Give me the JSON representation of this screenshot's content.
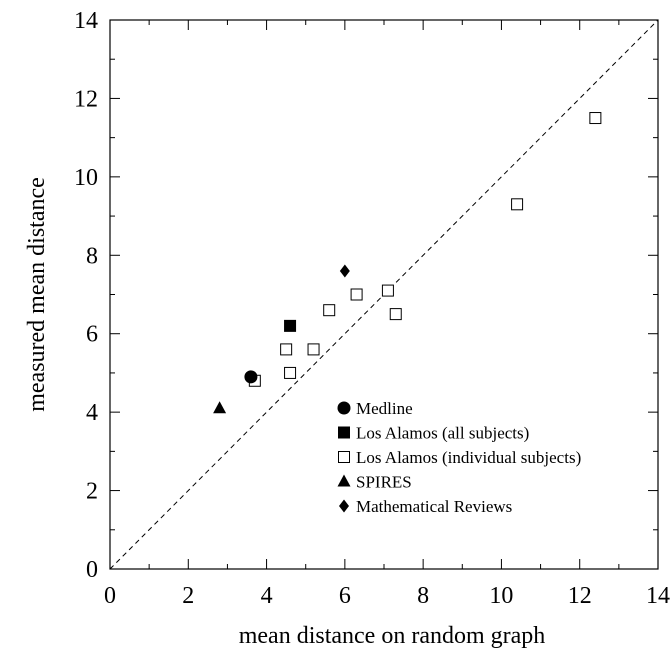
{
  "chart_data": {
    "type": "scatter",
    "xlabel": "mean distance on random graph",
    "ylabel": "measured mean distance",
    "xlim": [
      0,
      14
    ],
    "ylim": [
      0,
      14
    ],
    "xticks": [
      0,
      2,
      4,
      6,
      8,
      10,
      12,
      14
    ],
    "yticks": [
      0,
      2,
      4,
      6,
      8,
      10,
      12,
      14
    ],
    "grid": false,
    "legend_position": "lower-right",
    "reference_line": {
      "style": "dashed",
      "from": [
        0,
        0
      ],
      "to": [
        14,
        14
      ]
    },
    "series": [
      {
        "name": "Medline",
        "marker": "filled-circle",
        "points": [
          [
            3.6,
            4.9
          ]
        ]
      },
      {
        "name": "Los Alamos (all subjects)",
        "marker": "filled-square",
        "points": [
          [
            4.6,
            6.2
          ]
        ]
      },
      {
        "name": "Los Alamos (individual subjects)",
        "marker": "open-square",
        "points": [
          [
            3.7,
            4.8
          ],
          [
            4.5,
            5.6
          ],
          [
            4.6,
            5.0
          ],
          [
            5.2,
            5.6
          ],
          [
            5.6,
            6.6
          ],
          [
            6.3,
            7.0
          ],
          [
            7.1,
            7.1
          ],
          [
            7.3,
            6.5
          ],
          [
            10.4,
            9.3
          ],
          [
            12.4,
            11.5
          ]
        ]
      },
      {
        "name": "SPIRES",
        "marker": "filled-triangle",
        "points": [
          [
            2.8,
            4.1
          ]
        ]
      },
      {
        "name": "Mathematical Reviews",
        "marker": "filled-diamond",
        "points": [
          [
            6.0,
            7.6
          ]
        ]
      }
    ]
  }
}
